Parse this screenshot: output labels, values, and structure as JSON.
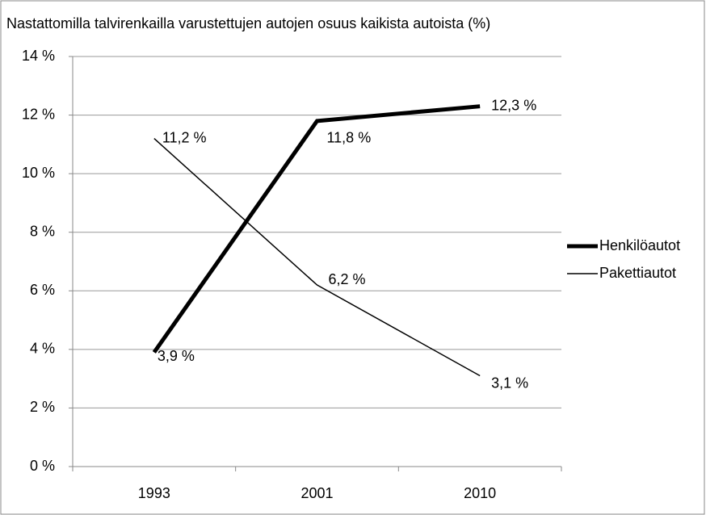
{
  "chart_data": {
    "type": "line",
    "title": "Nastattomilla talvirenkailla varustettujen autojen osuus kaikista autoista (%)",
    "categories": [
      "1993",
      "2001",
      "2010"
    ],
    "series": [
      {
        "name": "Henkilöautot",
        "color": "#000000",
        "values": [
          3.9,
          11.8,
          12.3
        ],
        "value_labels": [
          "3,9 %",
          "11,8 %",
          "12,3 %"
        ]
      },
      {
        "name": "Pakettiautot",
        "color": "#000000",
        "values": [
          11.2,
          6.2,
          3.1
        ],
        "value_labels": [
          "11,2 %",
          "6,2 %",
          "3,1 %"
        ]
      }
    ],
    "ylim": [
      0,
      14
    ],
    "yticks": [
      {
        "value": 0,
        "label": "0 %"
      },
      {
        "value": 2,
        "label": "2 %"
      },
      {
        "value": 4,
        "label": "4 %"
      },
      {
        "value": 6,
        "label": "6 %"
      },
      {
        "value": 8,
        "label": "8 %"
      },
      {
        "value": 10,
        "label": "10 %"
      },
      {
        "value": 12,
        "label": "12 %"
      },
      {
        "value": 14,
        "label": "14 %"
      }
    ],
    "grid": true,
    "legend": "right"
  }
}
